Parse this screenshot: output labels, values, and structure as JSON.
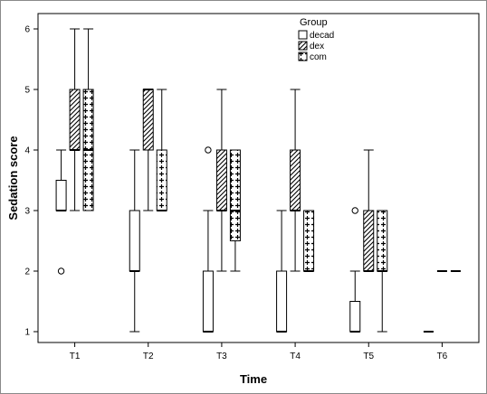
{
  "chart_data": {
    "type": "boxplot",
    "xlabel": "Time",
    "ylabel": "Sedation score",
    "categories": [
      "T1",
      "T2",
      "T3",
      "T4",
      "T5",
      "T6"
    ],
    "yticks": [
      "1",
      "2",
      "3",
      "4",
      "5",
      "6"
    ],
    "ylim": [
      0.8,
      6.3
    ],
    "legend": {
      "title": "Group",
      "placement": "top-right",
      "entries": [
        {
          "name": "decad",
          "pattern": "empty"
        },
        {
          "name": "dex",
          "pattern": "hatch"
        },
        {
          "name": "com",
          "pattern": "cross"
        }
      ]
    },
    "series": [
      {
        "name": "decad",
        "pattern": "empty",
        "boxes": [
          {
            "category": "T1",
            "min": 3,
            "q1": 3,
            "median": 3,
            "q3": 3.5,
            "max": 4,
            "outliers": [
              2
            ]
          },
          {
            "category": "T2",
            "min": 1,
            "q1": 2,
            "median": 2,
            "q3": 3,
            "max": 4,
            "outliers": []
          },
          {
            "category": "T3",
            "min": 1,
            "q1": 1,
            "median": 1,
            "q3": 2,
            "max": 3,
            "outliers": [
              4
            ]
          },
          {
            "category": "T4",
            "min": 1,
            "q1": 1,
            "median": 1,
            "q3": 2,
            "max": 3,
            "outliers": []
          },
          {
            "category": "T5",
            "min": 1,
            "q1": 1,
            "median": 1,
            "q3": 1.5,
            "max": 2,
            "outliers": [
              3
            ]
          },
          {
            "category": "T6",
            "min": 1,
            "q1": 1,
            "median": 1,
            "q3": 1,
            "max": 1,
            "outliers": []
          }
        ]
      },
      {
        "name": "dex",
        "pattern": "hatch",
        "boxes": [
          {
            "category": "T1",
            "min": 3,
            "q1": 4,
            "median": 4,
            "q3": 5,
            "max": 6,
            "outliers": []
          },
          {
            "category": "T2",
            "min": 3,
            "q1": 4,
            "median": 5,
            "q3": 5,
            "max": 5,
            "outliers": []
          },
          {
            "category": "T3",
            "min": 2,
            "q1": 3,
            "median": 3,
            "q3": 4,
            "max": 5,
            "outliers": []
          },
          {
            "category": "T4",
            "min": 2,
            "q1": 3,
            "median": 3,
            "q3": 4,
            "max": 5,
            "outliers": []
          },
          {
            "category": "T5",
            "min": 2,
            "q1": 2,
            "median": 2,
            "q3": 3,
            "max": 4,
            "outliers": []
          },
          {
            "category": "T6",
            "min": 2,
            "q1": 2,
            "median": 2,
            "q3": 2,
            "max": 2,
            "outliers": []
          }
        ]
      },
      {
        "name": "com",
        "pattern": "cross",
        "boxes": [
          {
            "category": "T1",
            "min": 3,
            "q1": 3,
            "median": 4,
            "q3": 5,
            "max": 6,
            "outliers": []
          },
          {
            "category": "T2",
            "min": 3,
            "q1": 3,
            "median": 3,
            "q3": 4,
            "max": 5,
            "outliers": []
          },
          {
            "category": "T3",
            "min": 2,
            "q1": 2.5,
            "median": 3,
            "q3": 4,
            "max": 4,
            "outliers": []
          },
          {
            "category": "T4",
            "min": 2,
            "q1": 2,
            "median": 2,
            "q3": 3,
            "max": 3,
            "outliers": []
          },
          {
            "category": "T5",
            "min": 1,
            "q1": 2,
            "median": 2,
            "q3": 3,
            "max": 3,
            "outliers": []
          },
          {
            "category": "T6",
            "min": 2,
            "q1": 2,
            "median": 2,
            "q3": 2,
            "max": 2,
            "outliers": []
          }
        ]
      }
    ]
  }
}
